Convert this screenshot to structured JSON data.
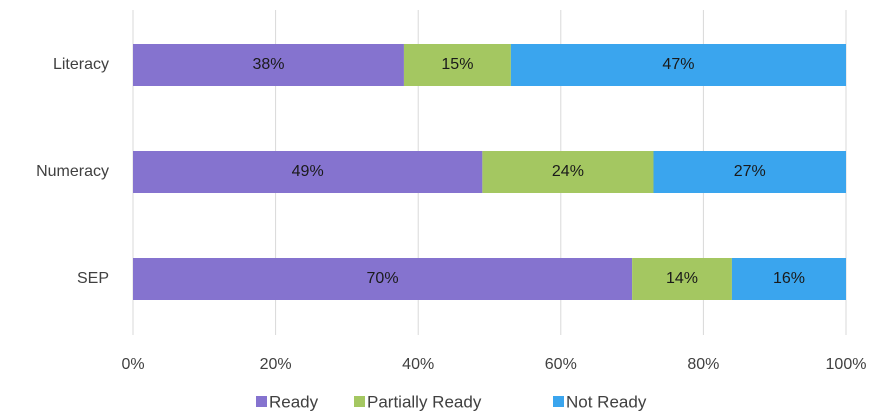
{
  "chart_data": {
    "type": "stacked_barh",
    "categories": [
      "Literacy",
      "Numeracy",
      "SEP"
    ],
    "series": [
      {
        "name": "Ready",
        "color": "#8573cf",
        "values": [
          38,
          49,
          70
        ],
        "value_labels": [
          "38%",
          "49%",
          "70%"
        ]
      },
      {
        "name": "Partially Ready",
        "color": "#a4c761",
        "values": [
          15,
          24,
          14
        ],
        "value_labels": [
          "15%",
          "24%",
          "14%"
        ]
      },
      {
        "name": "Not Ready",
        "color": "#3aa5ee",
        "values": [
          47,
          27,
          16
        ],
        "value_labels": [
          "47%",
          "27%",
          "16%"
        ]
      }
    ],
    "xlim": [
      0,
      100
    ],
    "xticks": [
      {
        "value": 0,
        "label": "0%"
      },
      {
        "value": 20,
        "label": "20%"
      },
      {
        "value": 40,
        "label": "40%"
      },
      {
        "value": 60,
        "label": "60%"
      },
      {
        "value": 80,
        "label": "80%"
      },
      {
        "value": 100,
        "label": "100%"
      }
    ],
    "grid": true,
    "legend": "bottom"
  }
}
